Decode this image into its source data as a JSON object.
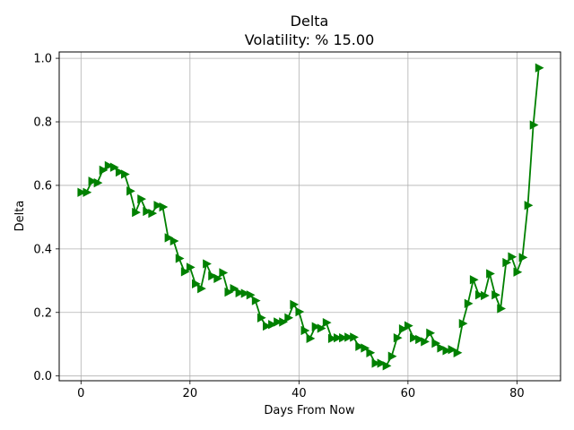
{
  "chart_data": {
    "type": "line",
    "title": "Delta",
    "subtitle": "Volatility: % 15.00",
    "xlabel": "Days From Now",
    "ylabel": "Delta",
    "xlim": [
      -4,
      88
    ],
    "ylim": [
      -0.015,
      1.02
    ],
    "xticks": [
      0,
      20,
      40,
      60,
      80
    ],
    "yticks": [
      0.0,
      0.2,
      0.4,
      0.6,
      0.8,
      1.0
    ],
    "ytick_labels": [
      "0.0",
      "0.2",
      "0.4",
      "0.6",
      "0.8",
      "1.0"
    ],
    "grid": true,
    "line_color": "#008000",
    "marker": "triangle-right",
    "x": [
      0,
      1,
      2,
      3,
      4,
      5,
      6,
      7,
      8,
      9,
      10,
      11,
      12,
      13,
      14,
      15,
      16,
      17,
      18,
      19,
      20,
      21,
      22,
      23,
      24,
      25,
      26,
      27,
      28,
      29,
      30,
      31,
      32,
      33,
      34,
      35,
      36,
      37,
      38,
      39,
      40,
      41,
      42,
      43,
      44,
      45,
      46,
      47,
      48,
      49,
      50,
      51,
      52,
      53,
      54,
      55,
      56,
      57,
      58,
      59,
      60,
      61,
      62,
      63,
      64,
      65,
      66,
      67,
      68,
      69,
      70,
      71,
      72,
      73,
      74,
      75,
      76,
      77,
      78,
      79,
      80,
      81,
      82,
      83,
      84
    ],
    "y": [
      0.578,
      0.578,
      0.613,
      0.608,
      0.648,
      0.662,
      0.657,
      0.642,
      0.635,
      0.582,
      0.515,
      0.557,
      0.518,
      0.512,
      0.537,
      0.532,
      0.435,
      0.425,
      0.37,
      0.328,
      0.342,
      0.29,
      0.275,
      0.353,
      0.315,
      0.307,
      0.325,
      0.264,
      0.275,
      0.262,
      0.26,
      0.255,
      0.237,
      0.183,
      0.157,
      0.162,
      0.17,
      0.17,
      0.183,
      0.225,
      0.202,
      0.143,
      0.118,
      0.155,
      0.15,
      0.168,
      0.118,
      0.12,
      0.12,
      0.122,
      0.122,
      0.093,
      0.088,
      0.073,
      0.04,
      0.04,
      0.032,
      0.062,
      0.12,
      0.148,
      0.158,
      0.12,
      0.115,
      0.108,
      0.135,
      0.103,
      0.088,
      0.08,
      0.083,
      0.073,
      0.165,
      0.228,
      0.303,
      0.255,
      0.253,
      0.322,
      0.255,
      0.212,
      0.357,
      0.375,
      0.327,
      0.373,
      0.537,
      0.79,
      0.97
    ]
  }
}
